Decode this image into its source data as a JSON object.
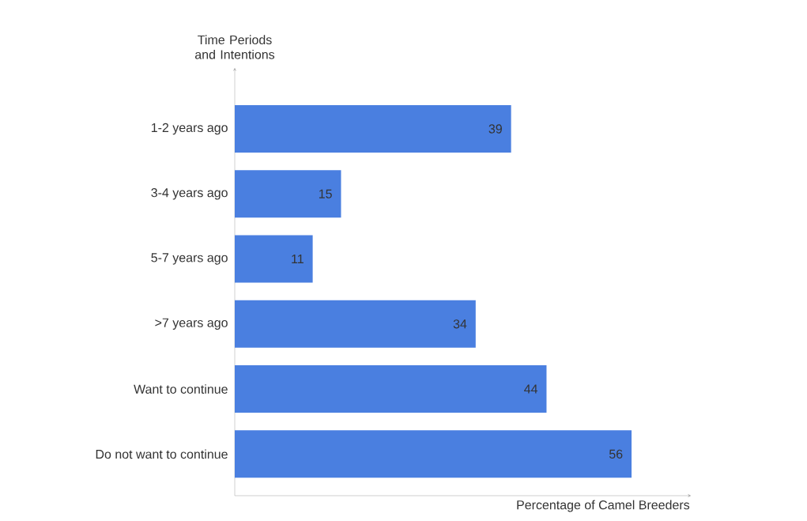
{
  "chart_data": {
    "type": "bar",
    "orientation": "horizontal",
    "xlabel": "Percentage of Camel Breeders",
    "ylabel": "Time Periods and Intentions",
    "categories": [
      "1-2 years ago",
      "3-4 years ago",
      "5-7 years ago",
      ">7 years ago",
      "Want to continue",
      "Do not want to continue"
    ],
    "values": [
      39,
      15,
      11,
      34,
      44,
      56
    ],
    "color": "#4a7fe0",
    "data_labels": true
  }
}
